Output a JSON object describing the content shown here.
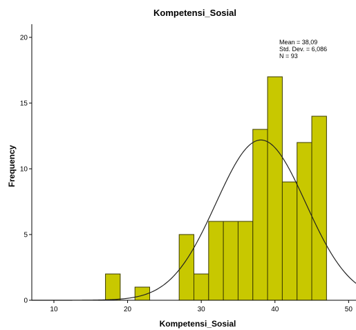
{
  "chart_data": {
    "type": "bar",
    "title": "Kompetensi_Sosial",
    "xlabel": "Kompetensi_Sosial",
    "ylabel": "Frequency",
    "xlim": [
      7,
      51
    ],
    "ylim": [
      0,
      21
    ],
    "x_ticks": [
      10,
      20,
      30,
      40,
      50
    ],
    "y_ticks": [
      0,
      5,
      10,
      15,
      20
    ],
    "bin_width": 2,
    "bins": [
      {
        "start": 17,
        "end": 19,
        "value": 2
      },
      {
        "start": 21,
        "end": 23,
        "value": 1
      },
      {
        "start": 27,
        "end": 29,
        "value": 5
      },
      {
        "start": 29,
        "end": 31,
        "value": 2
      },
      {
        "start": 31,
        "end": 33,
        "value": 6
      },
      {
        "start": 33,
        "end": 35,
        "value": 6
      },
      {
        "start": 35,
        "end": 37,
        "value": 6
      },
      {
        "start": 37,
        "end": 39,
        "value": 13
      },
      {
        "start": 39,
        "end": 41,
        "value": 17
      },
      {
        "start": 41,
        "end": 43,
        "value": 9
      },
      {
        "start": 43,
        "end": 45,
        "value": 12
      },
      {
        "start": 45,
        "end": 47,
        "value": 14
      }
    ],
    "normal_curve": {
      "mean": 38.09,
      "std": 6.086,
      "n": 93
    },
    "stats_text": [
      "Mean = 38,09",
      "Std. Dev. = 6,086",
      "N = 93"
    ],
    "colors": {
      "bar_fill": "#c8c800",
      "bar_stroke": "#3a3a00",
      "curve": "#222222"
    },
    "grid": false
  }
}
